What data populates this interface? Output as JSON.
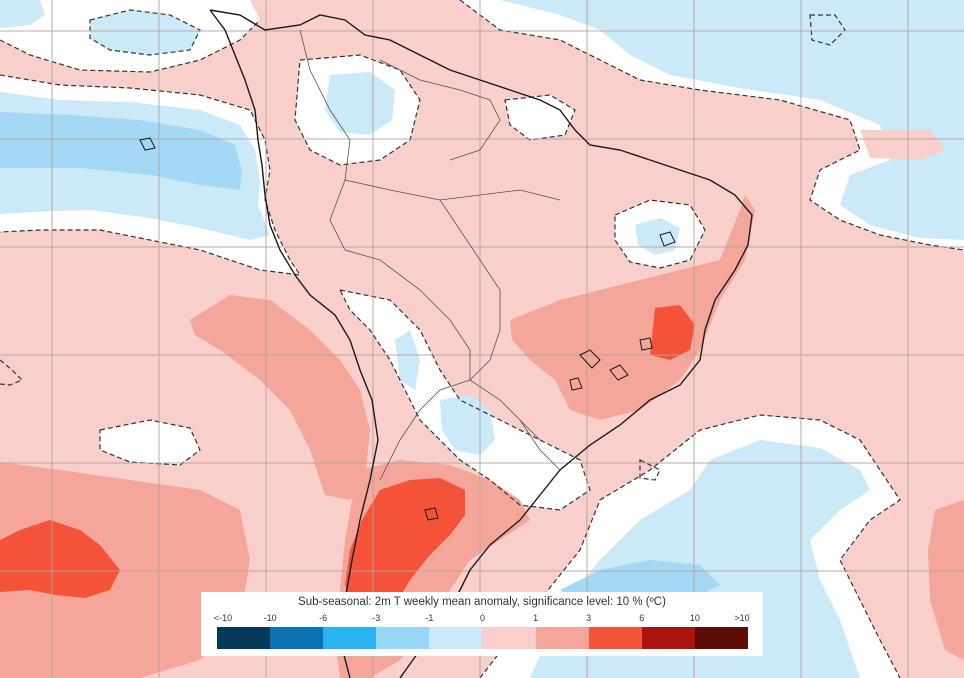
{
  "map": {
    "colors": {
      "ocean_background": "#f8cfca",
      "anomaly_0_to_1": "#f8cfca",
      "anomaly_1_to_3": "#f4a69a",
      "anomaly_3_to_6": "#f4533a",
      "anomaly_minus1_to_0": "#cce9f8",
      "anomaly_minus3_to_minus1": "#a5d8f5",
      "not_significant": "#ffffff",
      "coastline": "#1a1a1a",
      "borders": "#555555",
      "gridlines": "#b4a29b",
      "significance_contour": "#333333"
    }
  },
  "legend": {
    "title": "Sub-seasonal: 2m T weekly mean anomaly, significance level: 10 % (ºC)",
    "ticks": [
      "<-10",
      "-10",
      "-6",
      "-3",
      "-1",
      "0",
      "1",
      "3",
      "6",
      "10",
      ">10"
    ],
    "swatch_colors": [
      "#07395a",
      "#0a72b3",
      "#2ab3f0",
      "#96d6f6",
      "#cce9f8",
      "#f8cfca",
      "#f4a69a",
      "#f4533a",
      "#aa160f",
      "#5f0b07"
    ]
  }
}
